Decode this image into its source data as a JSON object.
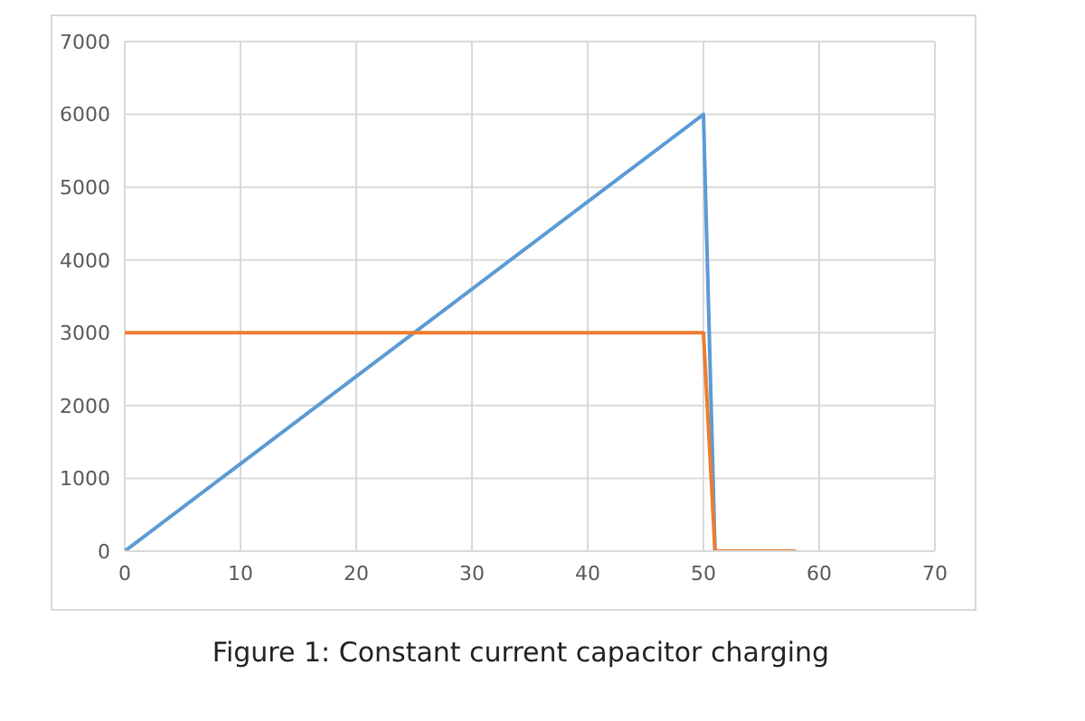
{
  "chart_data": {
    "type": "line",
    "title": "Figure 1: Constant current capacitor charging",
    "series": [
      {
        "color": "#5b9bd5",
        "x": [
          0,
          50,
          51,
          58
        ],
        "values": [
          0,
          6000,
          0,
          0
        ]
      },
      {
        "color": "#ed7d31",
        "x": [
          0,
          50,
          51,
          58
        ],
        "values": [
          3000,
          3000,
          0,
          0
        ]
      }
    ],
    "xlim": [
      0,
      70
    ],
    "xticks": [
      0,
      10,
      20,
      30,
      40,
      50,
      60,
      70
    ],
    "ylim": [
      0,
      7000
    ],
    "yticks": [
      0,
      1000,
      2000,
      3000,
      4000,
      5000,
      6000,
      7000
    ],
    "grid": true,
    "marker": "none",
    "line_style": "solid",
    "legend": false
  }
}
